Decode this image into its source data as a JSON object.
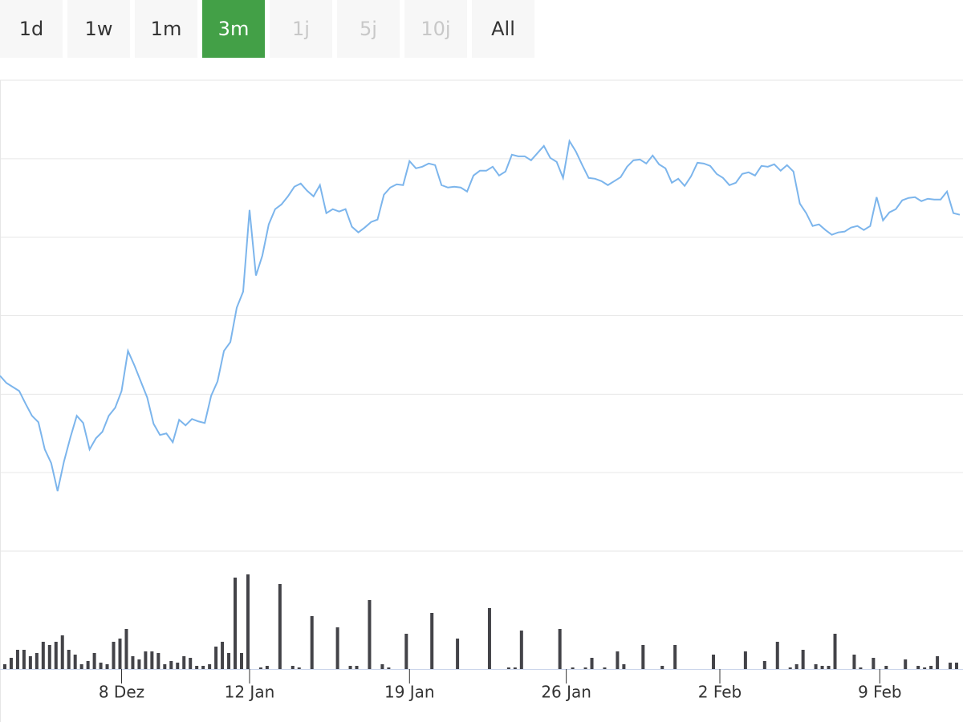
{
  "range_buttons": [
    "1d",
    "1w",
    "1m",
    "3m",
    "1j",
    "5j",
    "10j",
    "All"
  ],
  "active_button": 3,
  "disabled_buttons": [
    4,
    5,
    6
  ],
  "chart_data": [
    {
      "type": "line",
      "color": "#7cb5ec",
      "xlim": [
        0,
        150
      ],
      "xticks": [
        {
          "value": 19,
          "label": "8 Dez"
        },
        {
          "value": 39,
          "label": "12 Jan"
        },
        {
          "value": 64,
          "label": "19 Jan"
        },
        {
          "value": 88.5,
          "label": "26 Jan"
        },
        {
          "value": 112.5,
          "label": "2 Feb"
        },
        {
          "value": 137.5,
          "label": "9 Feb"
        }
      ],
      "ylim": [
        0,
        588
      ],
      "yticks": [
        0,
        98,
        196,
        294,
        392,
        490,
        588
      ],
      "grid": true,
      "values": [
        219,
        210,
        205,
        200,
        184,
        169,
        161,
        127,
        110,
        75,
        112,
        142,
        169,
        160,
        127,
        141,
        149,
        169,
        179,
        200,
        250,
        232,
        212,
        192,
        159,
        145,
        147,
        136,
        164,
        157,
        165,
        162,
        160,
        194,
        212,
        250,
        261,
        304,
        324,
        426,
        344,
        369,
        408,
        427,
        433,
        443,
        455,
        459,
        450,
        443,
        457,
        422,
        427,
        424,
        427,
        405,
        398,
        404,
        411,
        414,
        445,
        454,
        458,
        457,
        487,
        478,
        480,
        484,
        482,
        457,
        454,
        455,
        454,
        449,
        469,
        475,
        475,
        480,
        469,
        474,
        495,
        493,
        493,
        488,
        497,
        506,
        491,
        486,
        466,
        512,
        499,
        482,
        466,
        465,
        462,
        457,
        462,
        467,
        480,
        488,
        489,
        484,
        494,
        483,
        478,
        460,
        465,
        456,
        468,
        485,
        484,
        481,
        471,
        466,
        457,
        460,
        471,
        473,
        469,
        481,
        480,
        483,
        475,
        482,
        474,
        434,
        422,
        406,
        408,
        401,
        395,
        398,
        399,
        404,
        406,
        401,
        406,
        442,
        413,
        423,
        427,
        438,
        441,
        442,
        437,
        440,
        439,
        439,
        449,
        422,
        420
      ]
    },
    {
      "type": "bar",
      "color": "#434348",
      "xlim": [
        0,
        150
      ],
      "ylim": [
        0,
        147
      ],
      "x": [
        0.75,
        1.75,
        2.75,
        3.75,
        4.75,
        5.75,
        6.75,
        7.75,
        8.75,
        9.75,
        10.75,
        11.75,
        12.75,
        13.75,
        14.75,
        15.75,
        16.75,
        17.75,
        18.75,
        19.75,
        20.75,
        21.75,
        22.75,
        23.75,
        24.75,
        25.75,
        26.75,
        27.75,
        28.75,
        29.75,
        30.75,
        31.75,
        32.75,
        33.75,
        34.75,
        35.75,
        36.75,
        37.75,
        38.75,
        40.75,
        41.75,
        43.75,
        45.75,
        46.75,
        48.75,
        52.75,
        54.75,
        55.75,
        57.75,
        59.75,
        60.75,
        63.5,
        67.5,
        71.5,
        76.5,
        79.5,
        80.5,
        81.5,
        87.5,
        89.5,
        91.5,
        92.5,
        94.5,
        96.5,
        97.5,
        100.5,
        103.5,
        105.5,
        111.5,
        116.5,
        119.5,
        121.5,
        123.5,
        124.5,
        125.5,
        127.5,
        128.5,
        129.5,
        130.5,
        133.5,
        134.5,
        136.5,
        138.5,
        141.5,
        143.5,
        144.5,
        145.5,
        146.5,
        148.5,
        149.5
      ],
      "values": [
        6,
        14,
        24,
        24,
        16,
        20,
        34,
        30,
        34,
        42,
        24,
        18,
        6,
        10,
        20,
        8,
        6,
        34,
        38,
        50,
        16,
        12,
        22,
        22,
        20,
        6,
        10,
        8,
        16,
        14,
        4,
        4,
        6,
        28,
        34,
        20,
        114,
        20,
        118,
        2,
        4,
        106,
        4,
        2,
        66,
        52,
        4,
        4,
        86,
        6,
        2,
        44,
        70,
        38,
        76,
        2,
        2,
        48,
        50,
        2,
        2,
        14,
        2,
        22,
        6,
        30,
        4,
        30,
        18,
        22,
        10,
        34,
        2,
        6,
        24,
        6,
        4,
        4,
        44,
        18,
        2,
        14,
        4,
        12,
        4,
        2,
        4,
        16,
        8,
        8
      ]
    }
  ]
}
